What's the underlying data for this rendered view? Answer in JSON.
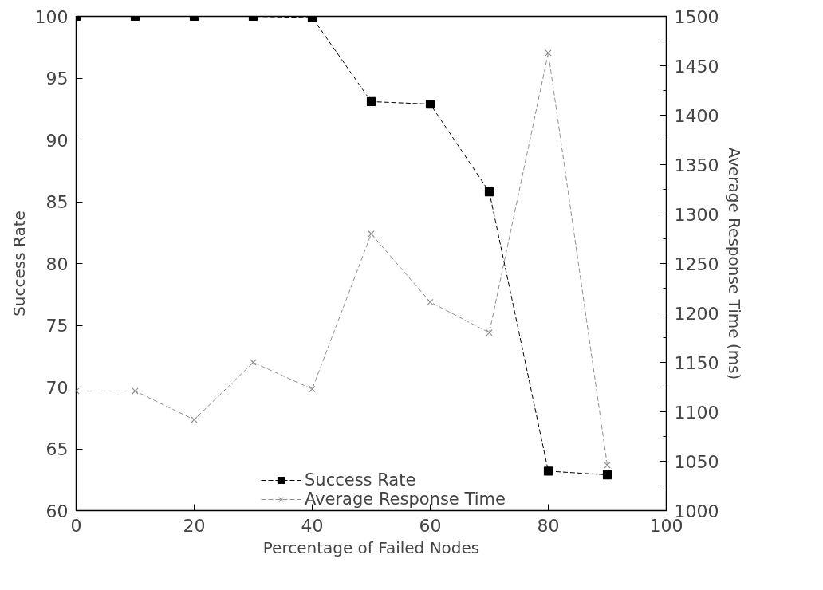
{
  "chart_data": {
    "type": "line",
    "xlabel": "Percentage of Failed Nodes",
    "ylabel": "Success Rate",
    "y2label": "Average Response Time (ms)",
    "x": [
      0,
      10,
      20,
      30,
      40,
      50,
      60,
      70,
      80,
      90
    ],
    "xlim": [
      0,
      100
    ],
    "xticks": [
      0,
      20,
      40,
      60,
      80,
      100
    ],
    "ylim": [
      60,
      100
    ],
    "yticks": [
      60,
      65,
      70,
      75,
      80,
      85,
      90,
      95,
      100
    ],
    "y2lim": [
      1000,
      1500
    ],
    "y2ticks": [
      1000,
      1050,
      1100,
      1150,
      1200,
      1250,
      1300,
      1350,
      1400,
      1450,
      1500
    ],
    "grid": false,
    "legend": "bottom right",
    "line_style": "dashed",
    "series": [
      {
        "name": "Success Rate",
        "color": "#000000",
        "marker": "square",
        "values": [
          100,
          100,
          100,
          100,
          99.9,
          93.1,
          92.9,
          85.8,
          63.2,
          62.9
        ]
      },
      {
        "name": "Average Response Time",
        "color": "#909090",
        "marker": "cross",
        "axis": "y2",
        "values": [
          1121,
          1121,
          1092,
          1150,
          1123,
          1280,
          1211,
          1180,
          1463,
          1046
        ]
      }
    ]
  }
}
